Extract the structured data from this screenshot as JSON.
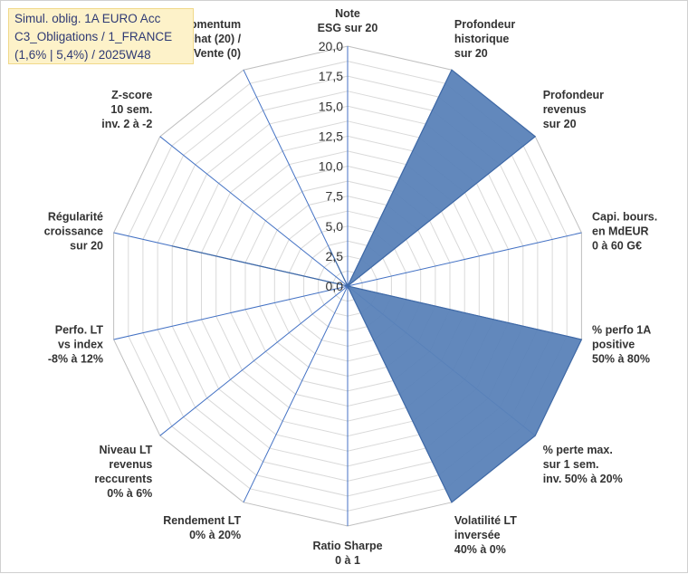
{
  "title_lines": [
    "Simul. oblig. 1A EURO Acc",
    "C3_Obligations / 1_FRANCE",
    "(1,6% | 5,4%) / 2025W48"
  ],
  "colors": {
    "fill": "#5a82b8",
    "stroke": "#3f69a6",
    "grid": "#d9d9d9",
    "spoke": "#4472c4"
  },
  "chart_data": {
    "type": "radar",
    "rlim": [
      0,
      20
    ],
    "ticks": [
      "0,0",
      "2,5",
      "5,0",
      "7,5",
      "10,0",
      "12,5",
      "15,0",
      "17,5",
      "20,0"
    ],
    "categories": [
      [
        "Note",
        "ESG sur 20"
      ],
      [
        "Profondeur",
        "historique",
        "sur 20"
      ],
      [
        "Profondeur",
        "revenus",
        "sur 20"
      ],
      [
        "Capi. bours.",
        "en MdEUR",
        "0 à 60 G€"
      ],
      [
        "% perfo 1A",
        "positive",
        "50% à 80%"
      ],
      [
        "% perte max.",
        "sur 1 sem.",
        "inv. 50% à 20%"
      ],
      [
        "Volatilité LT",
        "inversée",
        "40% à 0%"
      ],
      [
        "Ratio Sharpe",
        "0 à 1"
      ],
      [
        "Rendement LT",
        "0% à 20%"
      ],
      [
        "Niveau LT",
        "revenus",
        "reccurents",
        "0% à 6%"
      ],
      [
        "Perfo. LT",
        "vs index",
        "-8% à 12%"
      ],
      [
        "Régularité",
        "croissance",
        "sur 20"
      ],
      [
        "Z-score",
        "10 sem.",
        "inv. 2 à -2"
      ],
      [
        "Momentum",
        "Achat (20) /",
        "Vente (0)"
      ]
    ],
    "series": [
      {
        "values": [
          0,
          20,
          20,
          0,
          20,
          20,
          20,
          0,
          0,
          0,
          0,
          15,
          0,
          3.5
        ]
      }
    ]
  }
}
